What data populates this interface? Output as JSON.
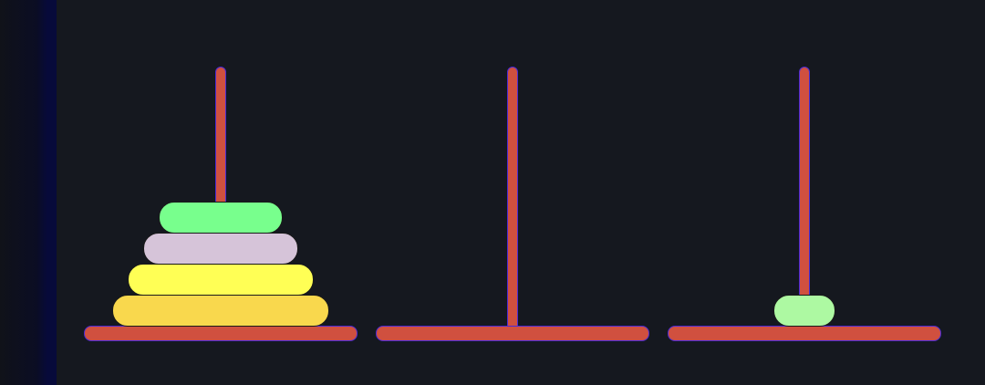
{
  "colors": {
    "background": "#15181f",
    "rod": "#d0503f",
    "base": "#d0503f"
  },
  "game": {
    "pegs": [
      {
        "disks": [
          {
            "size": 6,
            "color": "#f9d84d"
          },
          {
            "size": 5,
            "color": "#ffff55"
          },
          {
            "size": 4,
            "color": "#d6c4d9"
          },
          {
            "size": 3,
            "color": "#78ff8d"
          }
        ]
      },
      {
        "disks": []
      },
      {
        "disks": [
          {
            "size": 1,
            "color": "#adf9a2"
          }
        ]
      }
    ]
  }
}
